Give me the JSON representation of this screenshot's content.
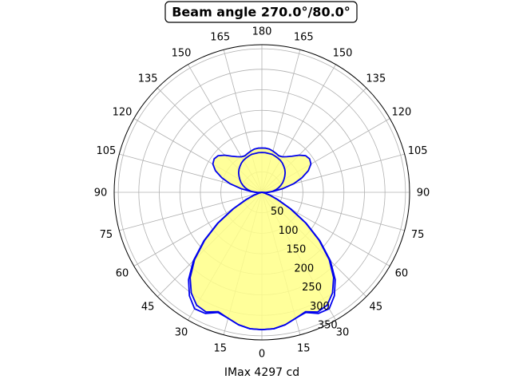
{
  "chart_data": {
    "type": "polar-line",
    "title": "Beam angle 270.0°/80.0°",
    "xlabel": "IMax 4297 cd",
    "angle_tick_labels": [
      "180",
      "165",
      "150",
      "135",
      "120",
      "105",
      "90",
      "75",
      "60",
      "45",
      "30",
      "15",
      "0",
      "15",
      "30",
      "45",
      "60",
      "75",
      "90",
      "105",
      "120",
      "135",
      "150",
      "165"
    ],
    "r_tick_labels": [
      "50",
      "100",
      "150",
      "200",
      "250",
      "300",
      "350"
    ],
    "r_ticks": [
      50,
      100,
      150,
      200,
      250,
      300,
      350
    ],
    "r_max": 360,
    "grid": true,
    "colors": {
      "fill": "#ffff88",
      "line": "#0000ee",
      "grid": "#b0b0b0"
    },
    "series": [
      {
        "angles_deg": [
          0,
          5,
          10,
          15,
          20,
          25,
          30,
          35,
          40,
          45,
          50,
          55,
          60,
          65,
          70,
          75,
          80,
          85,
          90,
          95,
          100,
          105,
          110,
          115,
          120,
          125,
          130,
          135,
          140,
          145,
          150,
          155,
          160,
          165,
          170,
          175,
          180
        ],
        "values": [
          335,
          334,
          328,
          318,
          310,
          322,
          318,
          300,
          272,
          232,
          182,
          130,
          80,
          42,
          20,
          6,
          0,
          4,
          12,
          28,
          52,
          80,
          104,
          125,
          138,
          142,
          139,
          128,
          115,
          106,
          100,
          98,
          101,
          104,
          107,
          108,
          108
        ]
      },
      {
        "angles_deg": [
          0,
          5,
          10,
          15,
          20,
          25,
          30,
          35,
          40,
          45,
          50,
          55,
          60,
          65,
          70,
          75,
          80,
          85,
          90,
          95,
          100,
          105,
          110,
          115,
          120,
          125,
          130,
          135,
          140,
          145,
          150,
          155,
          160,
          165,
          170,
          175,
          180
        ],
        "values": [
          335,
          334,
          328,
          318,
          312,
          326,
          328,
          308,
          278,
          236,
          185,
          132,
          82,
          44,
          22,
          7,
          0,
          0,
          0,
          0,
          0,
          0,
          0,
          0,
          0,
          0,
          0,
          0,
          0,
          0,
          0,
          0,
          0,
          0,
          0,
          0,
          0
        ]
      },
      {
        "angles_deg": [
          0,
          5,
          10,
          15,
          20,
          25,
          30,
          35,
          40,
          45,
          50,
          55,
          60,
          65,
          70,
          75,
          80,
          85,
          90,
          95,
          100,
          105,
          110,
          115,
          120,
          125,
          130,
          135,
          140,
          145,
          150,
          155,
          160,
          165,
          170,
          175,
          180
        ],
        "values": [
          0,
          0,
          0,
          0,
          0,
          0,
          0,
          0,
          0,
          0,
          0,
          0,
          0,
          0,
          0,
          0,
          0,
          9,
          17,
          26,
          34,
          42,
          49,
          56,
          62,
          68,
          74,
          79,
          83,
          87,
          90,
          92,
          94,
          96,
          96,
          97,
          97
        ]
      }
    ]
  }
}
